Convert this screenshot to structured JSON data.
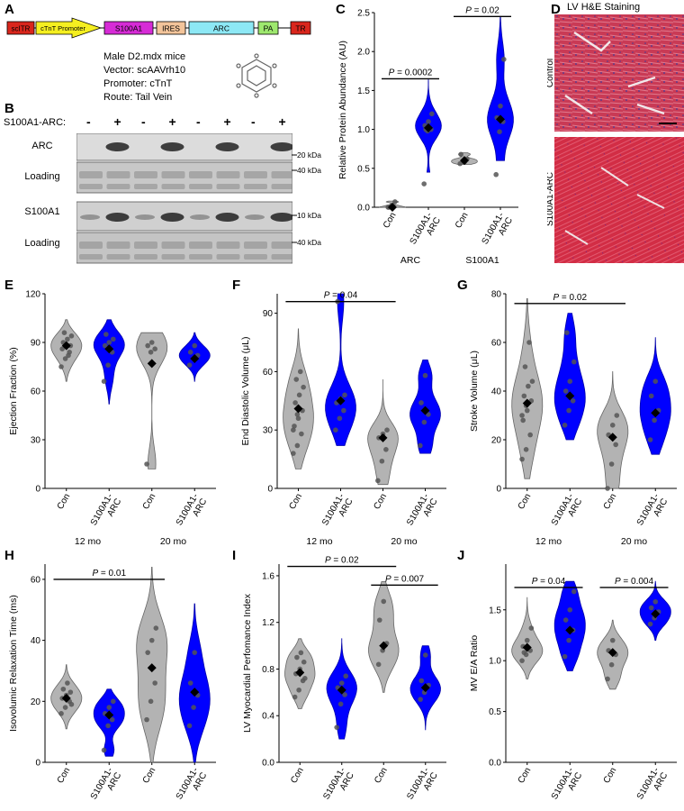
{
  "panels": {
    "A": "A",
    "B": "B",
    "C": "C",
    "D": "D",
    "E": "E",
    "F": "F",
    "G": "G",
    "H": "H",
    "I": "I",
    "J": "J"
  },
  "construct": {
    "segments": [
      {
        "label": "scITR",
        "color": "#d9261c"
      },
      {
        "label": "cTnT Promoter",
        "color": "#f5ef20"
      },
      {
        "label": "S100A1",
        "color": "#d62bd6"
      },
      {
        "label": "IRES",
        "color": "#f3c49a"
      },
      {
        "label": "ARC",
        "color": "#8de8f5"
      },
      {
        "label": "PA",
        "color": "#9ee86e"
      },
      {
        "label": "TR",
        "color": "#d9261c"
      }
    ],
    "mouse_line1": "Male D2.mdx mice",
    "mouse_line2": "Vector:  scAAVrh10",
    "mouse_line3": "Promoter:  cTnT",
    "mouse_line4": "Route:  Tail Vein"
  },
  "blot": {
    "treatment_label": "S100A1-ARC:",
    "lanes": [
      "-",
      "+",
      "-",
      "+",
      "-",
      "+",
      "-",
      "+"
    ],
    "rows": [
      {
        "label": "ARC",
        "kda": "20 kDa"
      },
      {
        "label": "Loading",
        "kda": "40 kDa"
      },
      {
        "label": "S100A1",
        "kda": "10 kDa"
      },
      {
        "label": "Loading",
        "kda": "40 kDa"
      }
    ]
  },
  "histology": {
    "title": "LV H&E Staining",
    "rows": [
      "Control",
      "S100A1-ARC"
    ]
  },
  "colors": {
    "control": "#b3b3b3",
    "treated": "#0000ff",
    "point": "#555555",
    "mean": "#000000"
  },
  "chart_data": [
    {
      "id": "C",
      "type": "violin",
      "ylabel": "Relative Protein Abundance (AU)",
      "ylim": [
        0,
        2.5
      ],
      "yticks": [
        0.0,
        0.5,
        1.0,
        1.5,
        2.0,
        2.5
      ],
      "tick_labels": [
        "0.0",
        "0.5",
        "1.0",
        "1.5",
        "2.0",
        "2.5"
      ],
      "categories": [
        "Con",
        "S100A1-ARC",
        "Con",
        "S100A1-ARC"
      ],
      "groups": [
        {
          "label": "ARC",
          "span": [
            0,
            1
          ]
        },
        {
          "label": "S100A1",
          "span": [
            2,
            3
          ]
        }
      ],
      "series": [
        {
          "mean": 0.0,
          "points": [
            0.0,
            0.02,
            0.07,
            0.0
          ],
          "range": [
            0.0,
            0.08
          ],
          "treated": false
        },
        {
          "mean": 1.02,
          "points": [
            0.3,
            0.98,
            1.0,
            1.05,
            1.1,
            1.2,
            1.0
          ],
          "range": [
            0.45,
            1.65
          ],
          "treated": true
        },
        {
          "mean": 0.6,
          "points": [
            0.56,
            0.6,
            0.62,
            0.68,
            0.58
          ],
          "range": [
            0.55,
            0.7
          ],
          "treated": false
        },
        {
          "mean": 1.13,
          "points": [
            0.42,
            0.97,
            1.1,
            1.15,
            1.3,
            1.9
          ],
          "range": [
            0.6,
            2.45
          ],
          "treated": true
        }
      ],
      "annotations": [
        {
          "text": "P = 0.0002",
          "from": 0,
          "to": 1,
          "y": 1.65
        },
        {
          "text": "P = 0.02",
          "from": 2,
          "to": 3,
          "y": 2.45
        }
      ]
    },
    {
      "id": "E",
      "type": "violin",
      "ylabel": "Ejection Fraction (%)",
      "ylim": [
        0,
        120
      ],
      "yticks": [
        0,
        30,
        60,
        90,
        120
      ],
      "tick_labels": [
        "0",
        "30",
        "60",
        "90",
        "120"
      ],
      "categories": [
        "Con",
        "S100A1-ARC",
        "Con",
        "S100A1-ARC"
      ],
      "groups": [
        {
          "label": "12 mo",
          "span": [
            0,
            1
          ]
        },
        {
          "label": "20 mo",
          "span": [
            2,
            3
          ]
        }
      ],
      "series": [
        {
          "mean": 88,
          "points": [
            75,
            80,
            84,
            86,
            88,
            88,
            90,
            92,
            94,
            96,
            82
          ],
          "range": [
            66,
            104
          ],
          "treated": false
        },
        {
          "mean": 86,
          "points": [
            66,
            76,
            84,
            88,
            90,
            92,
            95,
            86
          ],
          "range": [
            52,
            104
          ],
          "treated": true
        },
        {
          "mean": 77,
          "points": [
            15,
            84,
            86,
            88,
            90
          ],
          "range": [
            12,
            96
          ],
          "treated": false
        },
        {
          "mean": 80,
          "points": [
            76,
            80,
            82,
            84,
            88
          ],
          "range": [
            66,
            96
          ],
          "treated": true
        }
      ],
      "annotations": []
    },
    {
      "id": "F",
      "type": "violin",
      "ylabel": "End Diastolic Volume (μL)",
      "ylim": [
        0,
        100
      ],
      "yticks": [
        0,
        30,
        60,
        90
      ],
      "tick_labels": [
        "0",
        "30",
        "60",
        "90"
      ],
      "categories": [
        "Con",
        "S100A1-ARC",
        "Con",
        "S100A1-ARC"
      ],
      "groups": [
        {
          "label": "12 mo",
          "span": [
            0,
            1
          ]
        },
        {
          "label": "20 mo",
          "span": [
            2,
            3
          ]
        }
      ],
      "series": [
        {
          "mean": 41,
          "points": [
            18,
            22,
            28,
            32,
            36,
            40,
            44,
            48,
            52,
            56,
            60,
            30,
            38
          ],
          "range": [
            10,
            82
          ],
          "treated": false
        },
        {
          "mean": 45,
          "points": [
            30,
            36,
            40,
            44,
            46,
            48,
            96
          ],
          "range": [
            22,
            100
          ],
          "treated": true
        },
        {
          "mean": 26,
          "points": [
            4,
            14,
            20,
            26,
            28,
            30
          ],
          "range": [
            2,
            56
          ],
          "treated": false
        },
        {
          "mean": 40,
          "points": [
            22,
            34,
            38,
            44,
            58
          ],
          "range": [
            18,
            66
          ],
          "treated": true
        }
      ],
      "annotations": [
        {
          "text": "P = 0.04",
          "from": 0,
          "to": 2,
          "y": 96
        }
      ]
    },
    {
      "id": "G",
      "type": "violin",
      "ylabel": "Stroke Volume (μL)",
      "ylim": [
        0,
        80
      ],
      "yticks": [
        0,
        20,
        40,
        60,
        80
      ],
      "tick_labels": [
        "0",
        "20",
        "40",
        "60",
        "80"
      ],
      "categories": [
        "Con",
        "S100A1-ARC",
        "Con",
        "S100A1-ARC"
      ],
      "groups": [
        {
          "label": "12 mo",
          "span": [
            0,
            1
          ]
        },
        {
          "label": "20 mo",
          "span": [
            2,
            3
          ]
        }
      ],
      "series": [
        {
          "mean": 35,
          "points": [
            12,
            16,
            22,
            28,
            32,
            36,
            38,
            42,
            44,
            50,
            60,
            30,
            34
          ],
          "range": [
            4,
            78
          ],
          "treated": false
        },
        {
          "mean": 38,
          "points": [
            26,
            32,
            36,
            40,
            44,
            52,
            64
          ],
          "range": [
            20,
            72
          ],
          "treated": true
        },
        {
          "mean": 21,
          "points": [
            0,
            10,
            18,
            22,
            26,
            30
          ],
          "range": [
            0,
            48
          ],
          "treated": false
        },
        {
          "mean": 31,
          "points": [
            20,
            28,
            32,
            38,
            44
          ],
          "range": [
            14,
            62
          ],
          "treated": true
        }
      ],
      "annotations": [
        {
          "text": "P = 0.02",
          "from": 0,
          "to": 2,
          "y": 76
        }
      ]
    },
    {
      "id": "H",
      "type": "violin",
      "ylabel": "Isovolumic Relaxation Time (ms)",
      "ylim": [
        0,
        65
      ],
      "yticks": [
        0,
        20,
        40,
        60
      ],
      "tick_labels": [
        "0",
        "20",
        "40",
        "60"
      ],
      "categories": [
        "Con",
        "S100A1-ARC",
        "Con",
        "S100A1-ARC"
      ],
      "groups": [
        {
          "label": "12 mo",
          "span": [
            0,
            1
          ]
        },
        {
          "label": "20 mo",
          "span": [
            2,
            3
          ]
        }
      ],
      "series": [
        {
          "mean": 21,
          "points": [
            16,
            18,
            20,
            21,
            22,
            23,
            24,
            26,
            19
          ],
          "range": [
            11,
            32
          ],
          "treated": false
        },
        {
          "mean": 15.5,
          "points": [
            4,
            12,
            14,
            16,
            18,
            20
          ],
          "range": [
            2,
            24
          ],
          "treated": true
        },
        {
          "mean": 31,
          "points": [
            14,
            20,
            26,
            36,
            40,
            44
          ],
          "range": [
            0,
            64
          ],
          "treated": false
        },
        {
          "mean": 23,
          "points": [
            12,
            18,
            22,
            26,
            36
          ],
          "range": [
            0,
            52
          ],
          "treated": true
        }
      ],
      "annotations": [
        {
          "text": "P = 0.01",
          "from": 0,
          "to": 2,
          "y": 60
        }
      ]
    },
    {
      "id": "I",
      "type": "violin",
      "ylabel": "LV Myocardial Perfomance Index",
      "ylim": [
        0,
        1.7
      ],
      "yticks": [
        0.0,
        0.4,
        0.8,
        1.2,
        1.6
      ],
      "tick_labels": [
        "0.0",
        "0.4",
        "0.8",
        "1.2",
        "1.6"
      ],
      "categories": [
        "Con",
        "S100A1-ARC",
        "Con",
        "S100A1-ARC"
      ],
      "groups": [
        {
          "label": "12 mo",
          "span": [
            0,
            1
          ]
        },
        {
          "label": "20 mo",
          "span": [
            2,
            3
          ]
        }
      ],
      "series": [
        {
          "mean": 0.77,
          "points": [
            0.56,
            0.62,
            0.7,
            0.76,
            0.8,
            0.86,
            0.9,
            0.94,
            0.72
          ],
          "range": [
            0.46,
            1.06
          ],
          "treated": false
        },
        {
          "mean": 0.62,
          "points": [
            0.3,
            0.5,
            0.58,
            0.64,
            0.68,
            0.74
          ],
          "range": [
            0.2,
            1.06
          ],
          "treated": true
        },
        {
          "mean": 1.0,
          "points": [
            0.84,
            0.96,
            1.02,
            1.22,
            1.38
          ],
          "range": [
            0.6,
            1.55
          ],
          "treated": false
        },
        {
          "mean": 0.64,
          "points": [
            0.54,
            0.6,
            0.66,
            0.7,
            0.92
          ],
          "range": [
            0.28,
            1.0
          ],
          "treated": true
        }
      ],
      "annotations": [
        {
          "text": "P = 0.02",
          "from": 0,
          "to": 2,
          "y": 1.68
        },
        {
          "text": "P = 0.007",
          "from": 2,
          "to": 3,
          "y": 1.52
        }
      ]
    },
    {
      "id": "J",
      "type": "violin",
      "ylabel": "MV E/A Ratio",
      "ylim": [
        0,
        1.95
      ],
      "yticks": [
        0.0,
        0.5,
        1.0,
        1.5
      ],
      "tick_labels": [
        "0.0",
        "0.5",
        "1.0",
        "1.5"
      ],
      "categories": [
        "Con",
        "S100A1-ARC",
        "Con",
        "S100A1-ARC"
      ],
      "groups": [
        {
          "label": "12 mo",
          "span": [
            0,
            1
          ]
        },
        {
          "label": "20 mo",
          "span": [
            2,
            3
          ]
        }
      ],
      "series": [
        {
          "mean": 1.13,
          "points": [
            1.0,
            1.06,
            1.1,
            1.14,
            1.2,
            1.32,
            1.08
          ],
          "range": [
            0.82,
            1.62
          ],
          "treated": false
        },
        {
          "mean": 1.3,
          "points": [
            1.04,
            1.2,
            1.3,
            1.4,
            1.5,
            1.68
          ],
          "range": [
            0.9,
            1.78
          ],
          "treated": true
        },
        {
          "mean": 1.08,
          "points": [
            0.82,
            0.96,
            1.06,
            1.1,
            1.2
          ],
          "range": [
            0.72,
            1.4
          ],
          "treated": false
        },
        {
          "mean": 1.46,
          "points": [
            1.36,
            1.42,
            1.48,
            1.52,
            1.58
          ],
          "range": [
            1.2,
            1.78
          ],
          "treated": true
        }
      ],
      "annotations": [
        {
          "text": "P = 0.04",
          "from": 0,
          "to": 1,
          "y": 1.72
        },
        {
          "text": "P = 0.004",
          "from": 2,
          "to": 3,
          "y": 1.72
        }
      ]
    }
  ]
}
